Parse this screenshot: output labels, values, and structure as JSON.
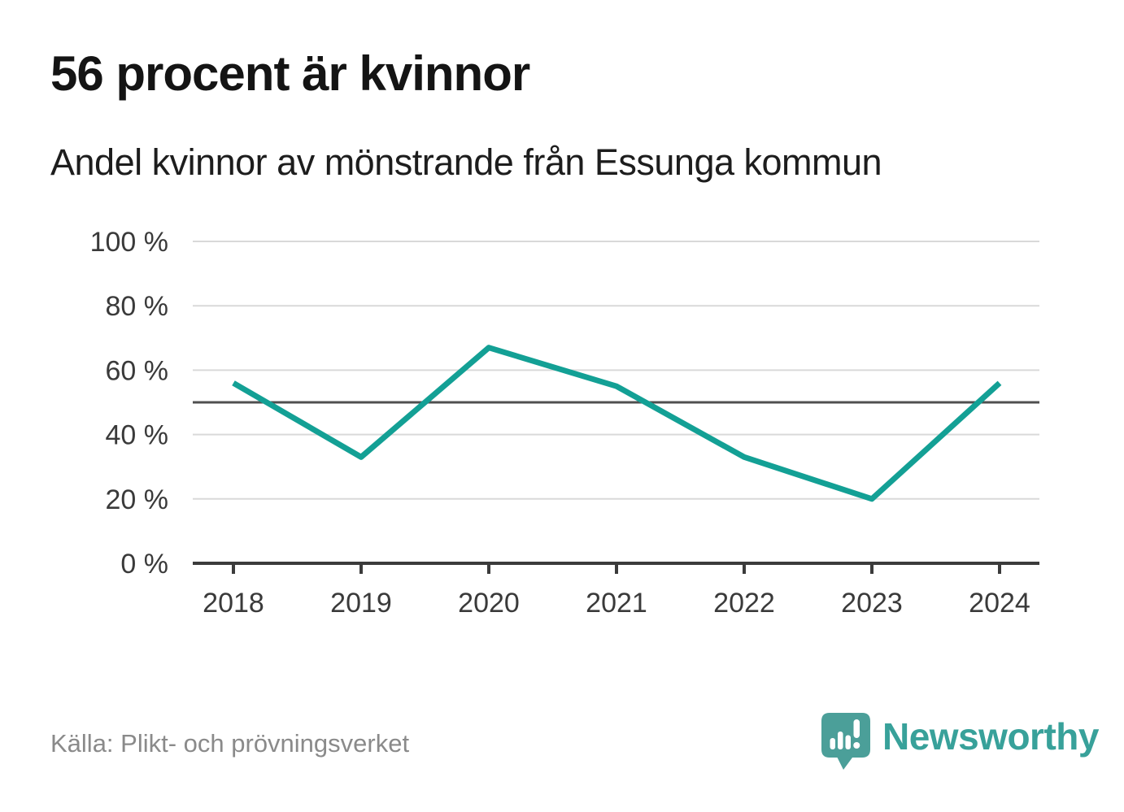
{
  "page": {
    "title": "56 procent är kvinnor",
    "subtitle": "Andel kvinnor av mönstrande från Essunga kommun",
    "source": "Källa: Plikt- och prövningsverket"
  },
  "branding": {
    "wordmark": "Newsworthy",
    "logo_icon": "newsworthy-speech-bubble-bars-exclamation-icon",
    "logo_color": "#4b9f99",
    "wordmark_color": "#38a19a"
  },
  "chart_data": {
    "type": "line",
    "title": "56 procent är kvinnor",
    "subtitle": "Andel kvinnor av mönstrande från Essunga kommun",
    "x": [
      "2018",
      "2019",
      "2020",
      "2021",
      "2022",
      "2023",
      "2024"
    ],
    "values": [
      56,
      33,
      67,
      55,
      33,
      20,
      56
    ],
    "xlabel": "",
    "ylabel": "",
    "ylim": [
      0,
      100
    ],
    "yticks": [
      0,
      20,
      40,
      60,
      80,
      100
    ],
    "ytick_suffix": " %",
    "reference_line_y": 50,
    "grid": true,
    "legend": false,
    "colors": {
      "line": "#13a095",
      "gridline": "#d9d9d9",
      "reference_line": "#4f4f4f",
      "axis": "#3b3b3b",
      "tick_labels": "#3a3a3a"
    }
  }
}
